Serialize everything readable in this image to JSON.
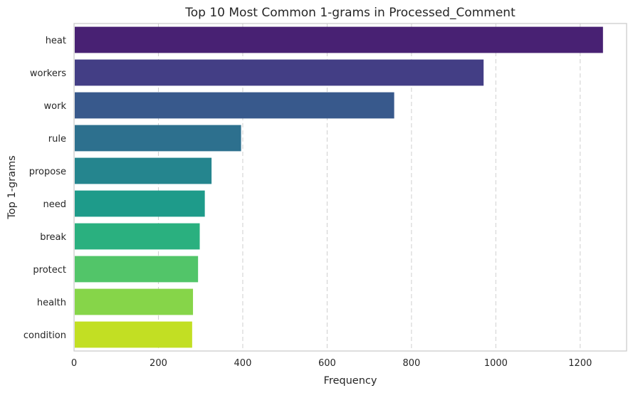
{
  "chart_data": {
    "type": "bar",
    "orientation": "horizontal",
    "title": "Top 10 Most Common 1-grams in Processed_Comment",
    "xlabel": "Frequency",
    "ylabel": "Top 1-grams",
    "categories": [
      "heat",
      "workers",
      "work",
      "rule",
      "propose",
      "need",
      "break",
      "protect",
      "health",
      "condition"
    ],
    "values": [
      1254,
      971,
      759,
      396,
      326,
      310,
      298,
      294,
      282,
      280
    ],
    "xlim": [
      0,
      1310
    ],
    "xticks": [
      0,
      200,
      400,
      600,
      800,
      1000,
      1200
    ],
    "xtick_labels": [
      "0",
      "200",
      "400",
      "600",
      "800",
      "1000",
      "1200"
    ],
    "grid": "x-dashed",
    "colors": [
      "#482173",
      "#433e85",
      "#38598c",
      "#2d708e",
      "#25858e",
      "#1e9b8a",
      "#2ab07f",
      "#52c569",
      "#86d549",
      "#c2df23"
    ]
  }
}
